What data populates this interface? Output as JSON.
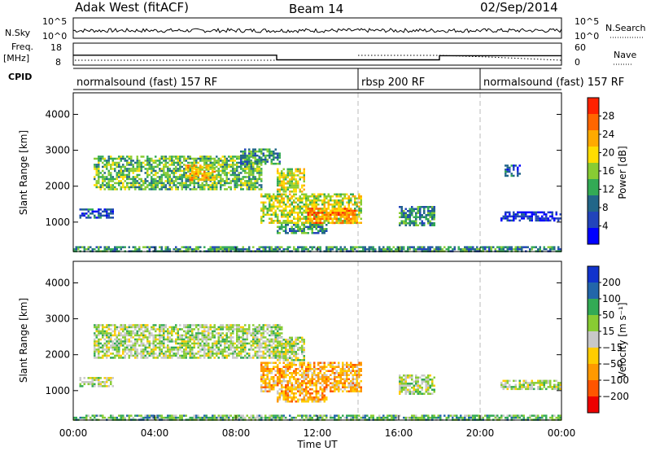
{
  "header": {
    "radar": "Adak West (fitACF)",
    "beam": "Beam 14",
    "date": "02/Sep/2014"
  },
  "panels": {
    "nsky": {
      "label": "N.Sky",
      "ticks": [
        "10^5",
        "10^0"
      ],
      "right_ticks": [
        "10^5",
        "10^0"
      ],
      "right_label": "N.Search"
    },
    "freq": {
      "label": "Freq.",
      "unit": "[MHz]",
      "ticks": [
        "18",
        "8"
      ],
      "right_ticks": [
        "60",
        "0"
      ],
      "right_label": "Nave"
    },
    "cpid": {
      "label": "CPID"
    }
  },
  "cpid_segments": [
    {
      "label": "normalsound (fast) 157 RF",
      "start": 0,
      "end": 14
    },
    {
      "label": "rbsp 200 RF",
      "start": 14,
      "end": 20
    },
    {
      "label": "normalsound (fast) 157 RF",
      "start": 20,
      "end": 24
    }
  ],
  "freq_steps": [
    {
      "start": 0,
      "end": 10,
      "value": 12.5
    },
    {
      "start": 10,
      "end": 18,
      "value": 10.4
    },
    {
      "start": 18,
      "end": 24,
      "value": 12.3
    }
  ],
  "chart_data": [
    {
      "type": "heatmap",
      "name": "power",
      "ylabel": "Slant Range [km]",
      "xlabel": "Time UT",
      "x_ticks": [
        "00:00",
        "04:00",
        "08:00",
        "12:00",
        "16:00",
        "20:00",
        "00:00"
      ],
      "x_tick_hours": [
        0,
        4,
        8,
        12,
        16,
        20,
        24
      ],
      "xlim": [
        0,
        24
      ],
      "ylim": [
        180,
        4600
      ],
      "y_ticks": [
        1000,
        2000,
        3000,
        4000
      ],
      "colorbar": {
        "label": "Power [dB]",
        "ticks": [
          "4",
          "8",
          "12",
          "16",
          "20",
          "24",
          "28"
        ],
        "colors": [
          "#0000ff",
          "#2244bb",
          "#226688",
          "#33aa55",
          "#88cc33",
          "#ffdd00",
          "#ffaa00",
          "#ff6600",
          "#ff2200"
        ]
      },
      "echo_regions": [
        {
          "t0": 0.3,
          "t1": 2.0,
          "r0": 1150,
          "r1": 1380,
          "level": 2
        },
        {
          "t0": 1.0,
          "t1": 9.3,
          "r0": 1900,
          "r1": 2850,
          "level": 4
        },
        {
          "t0": 5.5,
          "t1": 7.0,
          "r0": 2200,
          "r1": 2600,
          "level": 6
        },
        {
          "t0": 8.2,
          "t1": 10.2,
          "r0": 2600,
          "r1": 3050,
          "level": 3
        },
        {
          "t0": 10.0,
          "t1": 11.4,
          "r0": 1850,
          "r1": 2500,
          "level": 5
        },
        {
          "t0": 9.2,
          "t1": 14.2,
          "r0": 950,
          "r1": 1800,
          "level": 5
        },
        {
          "t0": 11.5,
          "t1": 14.0,
          "r0": 1000,
          "r1": 1400,
          "level": 7
        },
        {
          "t0": 10.0,
          "t1": 12.4,
          "r0": 700,
          "r1": 950,
          "level": 3
        },
        {
          "t0": 16.0,
          "t1": 17.8,
          "r0": 900,
          "r1": 1450,
          "level": 3
        },
        {
          "t0": 21.2,
          "t1": 22.0,
          "r0": 2300,
          "r1": 2600,
          "level": 2
        },
        {
          "t0": 21.0,
          "t1": 24.0,
          "r0": 1050,
          "r1": 1300,
          "level": 1
        },
        {
          "t0": 0.0,
          "t1": 24.0,
          "r0": 180,
          "r1": 330,
          "level": 3
        }
      ]
    },
    {
      "type": "heatmap",
      "name": "velocity",
      "ylabel": "Slant Range [km]",
      "xlabel": "Time UT",
      "x_ticks": [
        "00:00",
        "04:00",
        "08:00",
        "12:00",
        "16:00",
        "20:00",
        "00:00"
      ],
      "x_tick_hours": [
        0,
        4,
        8,
        12,
        16,
        20,
        24
      ],
      "xlim": [
        0,
        24
      ],
      "ylim": [
        180,
        4600
      ],
      "y_ticks": [
        1000,
        2000,
        3000,
        4000
      ],
      "colorbar": {
        "label": "Velocity [m s⁻¹]",
        "ticks": [
          "200",
          "100",
          "50",
          "15",
          "−15",
          "−50",
          "−100",
          "−200"
        ],
        "colors": [
          "#1133cc",
          "#2266aa",
          "#33aa55",
          "#88cc33",
          "#c8c8c8",
          "#ffcc00",
          "#ff9900",
          "#ff5500",
          "#ee0000"
        ]
      },
      "echo_regions": [
        {
          "t0": 0.3,
          "t1": 2.0,
          "r0": 1150,
          "r1": 1380,
          "level": 4
        },
        {
          "t0": 1.0,
          "t1": 10.3,
          "r0": 1900,
          "r1": 2850,
          "level": 4
        },
        {
          "t0": 10.0,
          "t1": 11.4,
          "r0": 1850,
          "r1": 2500,
          "level": 4
        },
        {
          "t0": 9.2,
          "t1": 14.2,
          "r0": 950,
          "r1": 1800,
          "level": 6
        },
        {
          "t0": 10.0,
          "t1": 12.4,
          "r0": 700,
          "r1": 950,
          "level": 6
        },
        {
          "t0": 16.0,
          "t1": 17.8,
          "r0": 900,
          "r1": 1450,
          "level": 4
        },
        {
          "t0": 21.0,
          "t1": 24.0,
          "r0": 1050,
          "r1": 1300,
          "level": 4
        },
        {
          "t0": 0.0,
          "t1": 24.0,
          "r0": 180,
          "r1": 330,
          "level": 3
        }
      ]
    }
  ]
}
